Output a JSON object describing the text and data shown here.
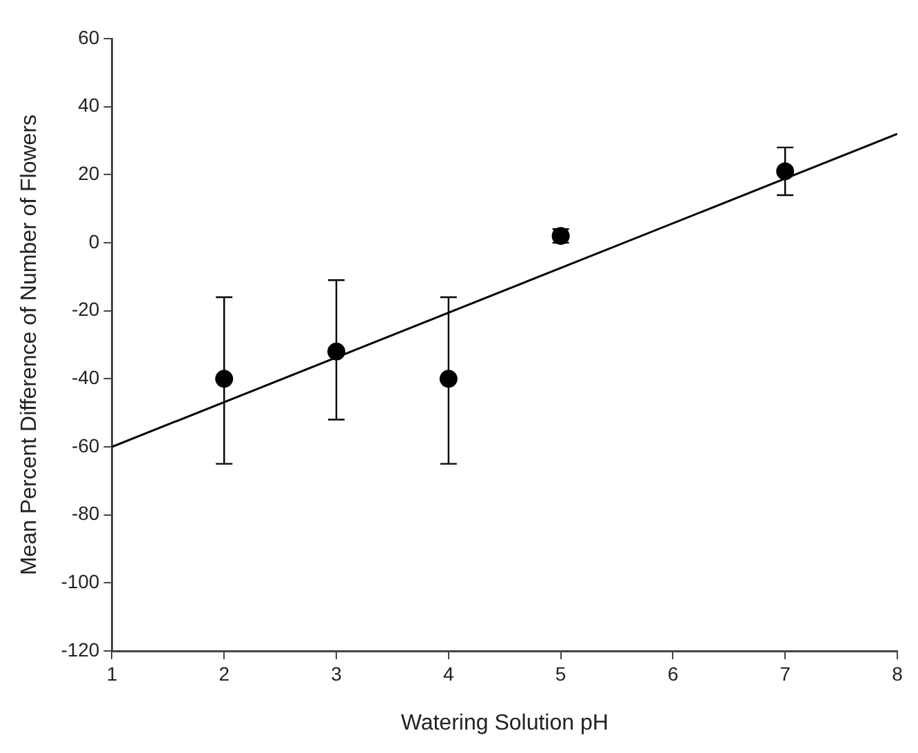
{
  "chart_data": {
    "type": "scatter",
    "xlabel": "Watering Solution pH",
    "ylabel": "Mean Percent Difference of Number of Flowers",
    "xlim": [
      1,
      8
    ],
    "xticks": [
      1,
      2,
      3,
      4,
      5,
      6,
      7,
      8
    ],
    "ylim": [
      -120,
      60
    ],
    "yticks": [
      -120,
      -100,
      -80,
      -60,
      -40,
      -20,
      0,
      20,
      40,
      60
    ],
    "grid": false,
    "legend": false,
    "series": [
      {
        "color": "#000000",
        "marker": "circle",
        "x": [
          2,
          3,
          4,
          5,
          7
        ],
        "values": [
          -40,
          -32,
          -40,
          2,
          21
        ],
        "errors": [
          [
            -65,
            -16
          ],
          [
            -52,
            -11
          ],
          [
            -65,
            -16
          ],
          [
            0,
            4
          ],
          [
            14,
            28
          ]
        ]
      },
      {
        "type": "line",
        "color": "#000000",
        "marker": "none",
        "line_style": "solid",
        "x": [
          1,
          8
        ],
        "values": [
          -60,
          32
        ]
      }
    ]
  }
}
